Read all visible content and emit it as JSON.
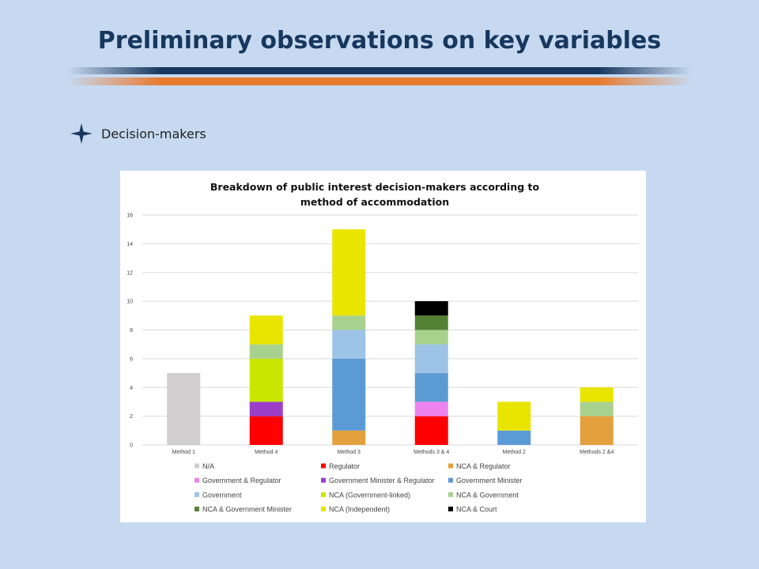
{
  "slide": {
    "title": "Preliminary observations on key variables",
    "bullet_text": "Decision-makers",
    "colors": {
      "background": "#c6d9f0",
      "title": "#17375e",
      "stripe_dark": "#17375e",
      "stripe_orange": "#e87a2e"
    },
    "bullet_icon": "four-point-star-icon"
  },
  "chart_data": {
    "type": "bar",
    "stacked": true,
    "title_lines": [
      "Breakdown of public interest decision-makers according to",
      "method of accommodation"
    ],
    "categories": [
      "Method 1",
      "Method 4",
      "Method 3",
      "Methods 3 & 4",
      "Method 2",
      "Methods 2 &4"
    ],
    "ylim": [
      0,
      16
    ],
    "yticks": [
      0,
      2,
      4,
      6,
      8,
      10,
      12,
      14,
      16
    ],
    "grid": true,
    "legend_position": "bottom",
    "series": [
      {
        "name": "N/A",
        "color": "#d0cece",
        "values": [
          5,
          0,
          0,
          0,
          0,
          0
        ]
      },
      {
        "name": "Regulator",
        "color": "#ff0000",
        "values": [
          0,
          2,
          0,
          2,
          0,
          0
        ]
      },
      {
        "name": "NCA & Regulator",
        "color": "#e4a03c",
        "values": [
          0,
          0,
          1,
          0,
          0,
          2
        ]
      },
      {
        "name": "Government & Regulator",
        "color": "#ee82ee",
        "values": [
          0,
          0,
          0,
          1,
          0,
          0
        ]
      },
      {
        "name": "Government Minister & Regulator",
        "color": "#9b3fc8",
        "values": [
          0,
          1,
          0,
          0,
          0,
          0
        ]
      },
      {
        "name": "Government Minister",
        "color": "#5b9bd5",
        "values": [
          0,
          0,
          5,
          2,
          1,
          0
        ]
      },
      {
        "name": "Government",
        "color": "#9dc3e6",
        "values": [
          0,
          0,
          2,
          2,
          0,
          0
        ]
      },
      {
        "name": "NCA (Government-linked)",
        "color": "#c9e600",
        "values": [
          0,
          3,
          0,
          0,
          0,
          0
        ]
      },
      {
        "name": "NCA & Government",
        "color": "#a9d18e",
        "values": [
          0,
          1,
          1,
          1,
          0,
          1
        ]
      },
      {
        "name": "NCA & Government Minister",
        "color": "#548235",
        "values": [
          0,
          0,
          0,
          1,
          0,
          0
        ]
      },
      {
        "name": "NCA (Independent)",
        "color": "#e9e400",
        "values": [
          0,
          2,
          6,
          0,
          2,
          1
        ]
      },
      {
        "name": "NCA & Court",
        "color": "#000000",
        "values": [
          0,
          0,
          0,
          1,
          0,
          0
        ]
      }
    ]
  }
}
